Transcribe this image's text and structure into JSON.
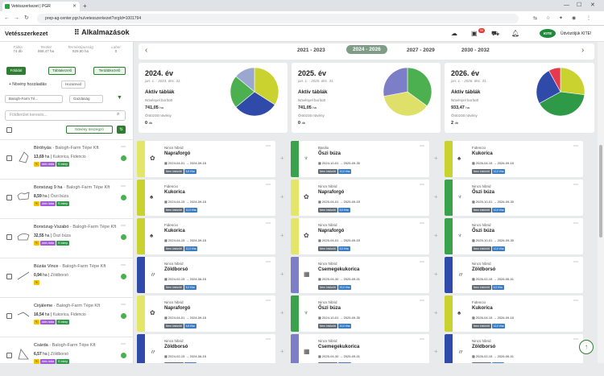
{
  "browser": {
    "tab_title": "Vetésszerkezet | PGR",
    "url": "prep-ag-center.pgr.hu/vetesszerkezet?orgId=1001794"
  },
  "header": {
    "brand": "Vetésszerkezet",
    "apps_label": "Alkalmazások",
    "notif_count": "99",
    "greeting": "Üdvözöljük KITE!",
    "kite_logo": "KITE"
  },
  "stats": [
    {
      "label": "Tábla",
      "value": "74 db"
    },
    {
      "label": "Terület",
      "value": "868,47 ha"
    },
    {
      "label": "Terméstípusság",
      "value": "829,80 ha"
    },
    {
      "label": "Labor",
      "value": "0"
    }
  ],
  "left_buttons": {
    "fold": "Földdal",
    "tables": "Táblakezelő",
    "plan": "Terdábkezelő",
    "add_crop": "+ Növény hozzáadás",
    "filter_label": "Hozamvid",
    "farm": "Balogh-Farm Té...",
    "economy": "Gazdaság",
    "search_placeholder": "Földterület keresés...",
    "crop_summary": "Növény összegző"
  },
  "fields": [
    {
      "name": "Bíróhyás",
      "owner": "Balogh-Farm Tépe Kft",
      "ha": "13,69",
      "unit": "ha",
      "crop": "Kukorica, Fidencio",
      "tags": [
        "Aktív tábla",
        "R-Interp"
      ]
    },
    {
      "name": "Borsózug 9 ha",
      "owner": "Balogh-Farm Tépe Kft",
      "ha": "8,59",
      "unit": "ha",
      "crop": "Őszi búza",
      "tags": [
        "Aktív tábla",
        "R-Interp"
      ]
    },
    {
      "name": "Borsózug-Vszabó",
      "owner": "Balogh-Farm Tépe Kft",
      "ha": "32,55",
      "unit": "ha",
      "crop": "Őszi búza",
      "tags": [
        "Aktív tábla",
        "R-Interp"
      ]
    },
    {
      "name": "Búzás Vince",
      "owner": "Balogh-Farm Tépe Kft",
      "ha": "0,94",
      "unit": "ha",
      "crop": "Zöldborsó",
      "tags": []
    },
    {
      "name": "Cirjáleme",
      "owner": "Balogh-Farm Tépe Kft",
      "ha": "16,54",
      "unit": "ha",
      "crop": "Kukorica, Fidencio",
      "tags": [
        "Aktív tábla",
        "R-Interp"
      ]
    },
    {
      "name": "Csárda",
      "owner": "Balogh-Farm Tépe Kft",
      "ha": "6,57",
      "unit": "ha",
      "crop": "Zöldborsó",
      "tags": [
        "Aktív tábla",
        "R-Interp"
      ]
    }
  ],
  "years": {
    "prev": "2021 - 2023",
    "active": "2024 - 2026",
    "next1": "2027 - 2029",
    "next2": "2030 - 2032"
  },
  "summaries": [
    {
      "year": "2024. év",
      "range": "jan. 1. - 2024. dec. 31.",
      "active": "Aktív táblák",
      "l1": "Növényel borított",
      "v1": "741,05",
      "u1": "ha",
      "l2": "Öntözött növény",
      "v2": "0",
      "u2": "db"
    },
    {
      "year": "2025. év",
      "range": "jan. 1. - 2025. dec. 31.",
      "active": "Aktív táblák",
      "l1": "Növényel borított",
      "v1": "741,05",
      "u1": "ha",
      "l2": "Öntözött növény",
      "v2": "0",
      "u2": "db"
    },
    {
      "year": "2026. év",
      "range": "jan. 1. - 2026. dec. 31.",
      "active": "Aktív táblák",
      "l1": "Növényel borított",
      "v1": "933,47",
      "u1": "ha",
      "l2": "Öntözött növény",
      "v2": "2",
      "u2": "db"
    }
  ],
  "pies": [
    [
      {
        "v": 0.34,
        "c": "#c9d22f"
      },
      {
        "v": 0.3,
        "c": "#2f4aa8"
      },
      {
        "v": 0.22,
        "c": "#4caf50"
      },
      {
        "v": 0.14,
        "c": "#9aa7cf"
      }
    ],
    [
      {
        "v": 0.35,
        "c": "#4caf50"
      },
      {
        "v": 0.37,
        "c": "#dfe06a"
      },
      {
        "v": 0.28,
        "c": "#7c7fc8"
      }
    ],
    [
      {
        "v": 0.27,
        "c": "#c9d22f"
      },
      {
        "v": 0.4,
        "c": "#2e9a48"
      },
      {
        "v": 0.25,
        "c": "#2f4aa8"
      },
      {
        "v": 0.08,
        "c": "#e53950"
      }
    ]
  ],
  "cards": [
    [
      {
        "h": "Nincs hibrid",
        "c": "Napraforgó",
        "d": "2024-04-01 → 2024-09-15",
        "t": "Nem öntözött",
        "s": "5,8 t/ha",
        "col": "#e4e66a",
        "ic": "✿"
      },
      {
        "h": "Basilio",
        "c": "Őszi búza",
        "d": "2024-10-01 → 2025-09-30",
        "t": "Nem öntözött",
        "s": "10,0 t/ha",
        "col": "#3aa24b",
        "ic": "♆"
      },
      {
        "h": "Fidencio",
        "c": "Kukorica",
        "d": "2026-04-15 → 2026-09-15",
        "t": "Nem öntözött",
        "s": "12,0 t/ha",
        "col": "#c9d22f",
        "ic": "♠"
      }
    ],
    [
      {
        "h": "Fidencio",
        "c": "Kukorica",
        "d": "2024-04-15 → 2024-09-15",
        "t": "Nem öntözött",
        "s": "12,0 t/ha",
        "col": "#c9d22f",
        "ic": "♠"
      },
      {
        "h": "Nincs hibrid",
        "c": "Napraforgó",
        "d": "2025-04-01 → 2025-09-15",
        "t": "Nem öntözött",
        "s": "5,0 t/ha",
        "col": "#e4e66a",
        "ic": "✿"
      },
      {
        "h": "Nincs hibrid",
        "c": "Őszi búza",
        "d": "2025-10-01 → 2026-09-30",
        "t": "Nem öntözött",
        "s": "10,0 t/ha",
        "col": "#3aa24b",
        "ic": "♆"
      }
    ],
    [
      {
        "h": "Fidencio",
        "c": "Kukorica",
        "d": "2024-04-15 → 2024-09-15",
        "t": "Nem öntözött",
        "s": "12,0 t/ha",
        "col": "#c9d22f",
        "ic": "♠"
      },
      {
        "h": "Nincs hibrid",
        "c": "Napraforgó",
        "d": "2025-04-01 → 2025-09-15",
        "t": "Nem öntözött",
        "s": "5,0 t/ha",
        "col": "#e4e66a",
        "ic": "✿"
      },
      {
        "h": "Nincs hibrid",
        "c": "Őszi búza",
        "d": "2025-10-01 → 2026-09-30",
        "t": "Nem öntözött",
        "s": "10,0 t/ha",
        "col": "#3aa24b",
        "ic": "♆"
      }
    ],
    [
      {
        "h": "Nincs hibrid",
        "c": "Zöldborsó",
        "d": "2024-02-15 → 2024-06-15",
        "t": "Nem öntözött",
        "s": "6,0 t/ha",
        "col": "#2f4aa8",
        "ic": "〃"
      },
      {
        "h": "Nincs hibrid",
        "c": "Csemegekukorica",
        "d": "2025-04-30 → 2025-09-01",
        "t": "Nem öntözött",
        "s": "20,0 t/ha",
        "col": "#7c7fc8",
        "ic": "▦"
      },
      {
        "h": "Nincs hibrid",
        "c": "Zöldborsó",
        "d": "2026-02-15 → 2026-06-01",
        "t": "Nem öntözött",
        "s": "6,0 t/ha",
        "col": "#2f4aa8",
        "ic": "〃"
      }
    ],
    [
      {
        "h": "Nincs hibrid",
        "c": "Napraforgó",
        "d": "2024-04-01 → 2024-09-15",
        "t": "Nem öntözött",
        "s": "5,8 t/ha",
        "col": "#e4e66a",
        "ic": "✿"
      },
      {
        "h": "Nincs hibrid",
        "c": "Őszi búza",
        "d": "2024-10-01 → 2025-09-30",
        "t": "Nem öntözött",
        "s": "10,0 t/ha",
        "col": "#3aa24b",
        "ic": "♆"
      },
      {
        "h": "Fidencio",
        "c": "Kukorica",
        "d": "2026-04-15 → 2026-09-15",
        "t": "Nem öntözött",
        "s": "12,0 t/ha",
        "col": "#c9d22f",
        "ic": "♠"
      }
    ],
    [
      {
        "h": "Nincs hibrid",
        "c": "Zöldborsó",
        "d": "2024-02-15 → 2024-06-15",
        "t": "Nem öntözött",
        "s": "6,0 t/ha",
        "col": "#2f4aa8",
        "ic": "〃"
      },
      {
        "h": "Nincs hibrid",
        "c": "Csemegekukorica",
        "d": "2025-04-30 → 2025-09-01",
        "t": "Nem öntözött",
        "s": "20,0 t/ha",
        "col": "#7c7fc8",
        "ic": "▦"
      },
      {
        "h": "Nincs hibrid",
        "c": "Zöldborsó",
        "d": "2026-02-15 → 2026-06-01",
        "t": "Nem öntözött",
        "s": "6,0 t/ha",
        "col": "#2f4aa8",
        "ic": "〃"
      }
    ]
  ]
}
